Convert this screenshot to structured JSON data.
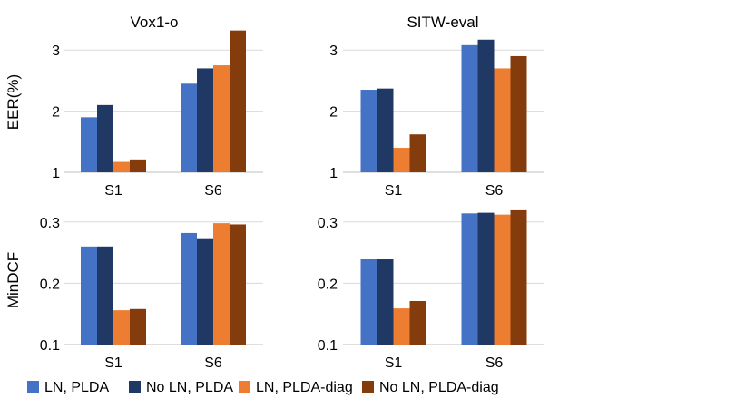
{
  "chart_data": [
    {
      "type": "bar",
      "title": "Vox1-o",
      "ylabel": "EER(%)",
      "categories": [
        "S1",
        "S6"
      ],
      "ylim": [
        1,
        3.3
      ],
      "yticks": [
        "1",
        "2",
        "3"
      ],
      "series": [
        {
          "name": "LN, PLDA",
          "values": [
            1.9,
            2.45
          ]
        },
        {
          "name": "No LN, PLDA",
          "values": [
            2.1,
            2.7
          ]
        },
        {
          "name": "LN, PLDA-diag",
          "values": [
            1.17,
            2.75
          ]
        },
        {
          "name": "No LN, PLDA-diag",
          "values": [
            1.21,
            3.32
          ]
        }
      ],
      "grid": true
    },
    {
      "type": "bar",
      "title": "SITW-eval",
      "ylabel": "",
      "categories": [
        "S1",
        "S6"
      ],
      "ylim": [
        1,
        3.3
      ],
      "yticks": [
        "1",
        "2",
        "3"
      ],
      "series": [
        {
          "name": "LN, PLDA",
          "values": [
            2.35,
            3.08
          ]
        },
        {
          "name": "No LN, PLDA",
          "values": [
            2.37,
            3.17
          ]
        },
        {
          "name": "LN, PLDA-diag",
          "values": [
            1.4,
            2.7
          ]
        },
        {
          "name": "No LN, PLDA-diag",
          "values": [
            1.62,
            2.9
          ]
        }
      ],
      "grid": true
    },
    {
      "type": "bar",
      "title": "",
      "ylabel": "MinDCF",
      "categories": [
        "S1",
        "S6"
      ],
      "ylim": [
        0.1,
        0.31
      ],
      "yticks": [
        "0.1",
        "0.2",
        "0.3"
      ],
      "series": [
        {
          "name": "LN, PLDA",
          "values": [
            0.26,
            0.282
          ]
        },
        {
          "name": "No LN, PLDA",
          "values": [
            0.26,
            0.272
          ]
        },
        {
          "name": "LN, PLDA-diag",
          "values": [
            0.156,
            0.298
          ]
        },
        {
          "name": "No LN, PLDA-diag",
          "values": [
            0.158,
            0.296
          ]
        }
      ],
      "grid": true
    },
    {
      "type": "bar",
      "title": "",
      "ylabel": "",
      "categories": [
        "S1",
        "S6"
      ],
      "ylim": [
        0.1,
        0.31
      ],
      "yticks": [
        "0.1",
        "0.2",
        "0.3"
      ],
      "series": [
        {
          "name": "LN, PLDA",
          "values": [
            0.239,
            0.314
          ]
        },
        {
          "name": "No LN, PLDA",
          "values": [
            0.239,
            0.315
          ]
        },
        {
          "name": "LN, PLDA-diag",
          "values": [
            0.159,
            0.312
          ]
        },
        {
          "name": "No LN, PLDA-diag",
          "values": [
            0.171,
            0.319
          ]
        }
      ],
      "grid": true
    }
  ],
  "legend": {
    "placement": "bottom",
    "items": [
      {
        "label": "LN, PLDA",
        "color": "#4472C4"
      },
      {
        "label": "No LN, PLDA",
        "color": "#203864"
      },
      {
        "label": "LN, PLDA-diag",
        "color": "#ED7D31"
      },
      {
        "label": "No LN, PLDA-diag",
        "color": "#843C0C"
      }
    ]
  },
  "colors": {
    "grid": "#D9D9D9",
    "axis": "#BFBFBF"
  }
}
